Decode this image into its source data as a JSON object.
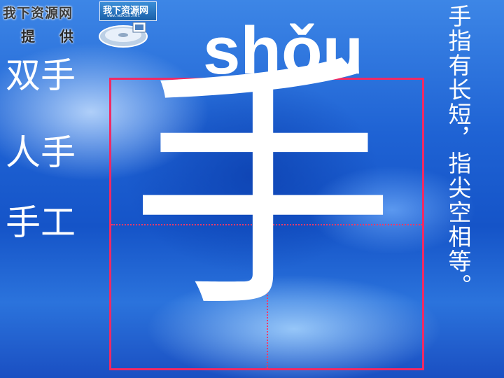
{
  "logo": {
    "title": "我下资源网",
    "subtitle": "提 供",
    "badge_title": "我下资源网",
    "badge_url": "www.woxia.net",
    "icon": "disk-icon"
  },
  "words": [
    "双手",
    "人手",
    "手工"
  ],
  "pinyin": "shǒu",
  "character": "手",
  "rhyme": "手指有长短，指尖空相等。",
  "colors": {
    "grid": "#f02a64",
    "text": "#ffffff",
    "background": "#1f63d4"
  }
}
